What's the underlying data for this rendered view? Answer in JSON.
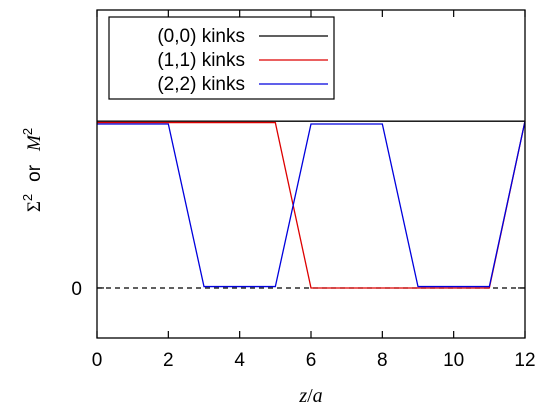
{
  "chart_data": {
    "type": "line",
    "xlabel_var": "z",
    "xlabel_unit": "a",
    "ylabel_left": "Σ",
    "ylabel_or": "or",
    "ylabel_right": "M",
    "ylabel_sup": "2",
    "xlim": [
      0,
      12
    ],
    "ylim": [
      -0.18,
      1.0
    ],
    "x_ticks": [
      0,
      2,
      4,
      6,
      8,
      10,
      12
    ],
    "y_ticks": [
      {
        "value": 0,
        "label": "0"
      }
    ],
    "grid": false,
    "legend": {
      "position": "top-left"
    },
    "reference_line": {
      "y": 0,
      "style": "dashed"
    },
    "series": [
      {
        "name": "(0,0) kinks",
        "color": "#000000",
        "x": [
          0,
          12
        ],
        "y": [
          0.6,
          0.6
        ]
      },
      {
        "name": "(1,1) kinks",
        "color": "#dd0000",
        "x": [
          0,
          5,
          6,
          11,
          12
        ],
        "y": [
          0.595,
          0.595,
          0.0,
          0.0,
          0.6
        ]
      },
      {
        "name": "(2,2) kinks",
        "color": "#0000dd",
        "x": [
          0,
          2,
          3,
          5,
          6,
          8,
          9,
          11,
          12
        ],
        "y": [
          0.59,
          0.59,
          0.005,
          0.005,
          0.59,
          0.59,
          0.005,
          0.005,
          0.6
        ]
      }
    ]
  }
}
